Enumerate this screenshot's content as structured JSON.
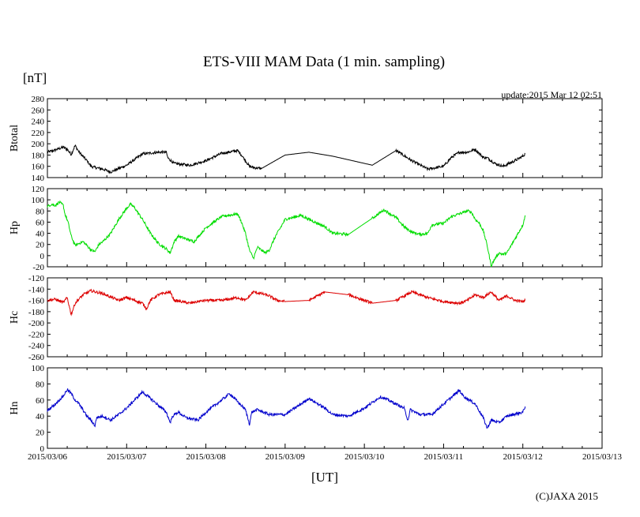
{
  "chart_data": {
    "type": "line",
    "title": "ETS-VIII MAM Data (1 min. sampling)",
    "unit_label": "[nT]",
    "xlabel": "[UT]",
    "update_text": "update:2015 Mar 12 02:51",
    "copyright": "(C)JAXA 2015",
    "x_ticks": [
      "2015/03/06",
      "2015/03/07",
      "2015/03/08",
      "2015/03/09",
      "2015/03/10",
      "2015/03/11",
      "2015/03/12",
      "2015/03/13"
    ],
    "x_range_days": [
      0,
      7
    ],
    "panels": [
      {
        "name": "Btotal",
        "color": "#000000",
        "ylim": [
          140,
          280
        ],
        "yticks": [
          "280",
          "260",
          "240",
          "220",
          "200",
          "180",
          "160",
          "140"
        ],
        "x": [
          0,
          0.08,
          0.2,
          0.25,
          0.3,
          0.35,
          0.4,
          0.5,
          0.55,
          0.6,
          0.7,
          0.8,
          1.0,
          1.2,
          1.4,
          1.5,
          1.52,
          1.6,
          1.8,
          2.0,
          2.2,
          2.4,
          2.45,
          2.55,
          2.6,
          2.7,
          3.0,
          3.3,
          3.6,
          4.1,
          4.4,
          4.6,
          4.8,
          5.0,
          5.1,
          5.2,
          5.3,
          5.4,
          5.5,
          5.55,
          5.65,
          5.75,
          5.9,
          6.0,
          6.03
        ],
        "y": [
          185,
          188,
          194,
          190,
          181,
          197,
          185,
          170,
          160,
          158,
          155,
          150,
          162,
          182,
          185,
          185,
          175,
          165,
          162,
          170,
          183,
          188,
          180,
          160,
          158,
          156,
          180,
          185,
          178,
          162,
          188,
          170,
          155,
          160,
          176,
          185,
          185,
          190,
          176,
          175,
          165,
          160,
          170,
          178,
          182
        ]
      },
      {
        "name": "Hp",
        "color": "#00dd00",
        "ylim": [
          -20,
          120
        ],
        "yticks": [
          "120",
          "100",
          "80",
          "60",
          "40",
          "20",
          "0",
          "-20"
        ],
        "x": [
          0,
          0.05,
          0.1,
          0.15,
          0.2,
          0.22,
          0.26,
          0.3,
          0.35,
          0.4,
          0.45,
          0.5,
          0.55,
          0.6,
          0.65,
          0.7,
          0.8,
          0.9,
          1.0,
          1.05,
          1.1,
          1.2,
          1.3,
          1.4,
          1.5,
          1.55,
          1.6,
          1.65,
          1.75,
          1.85,
          2.0,
          2.2,
          2.4,
          2.45,
          2.5,
          2.55,
          2.6,
          2.65,
          2.75,
          2.8,
          2.88,
          2.95,
          3.0,
          3.2,
          3.3,
          3.5,
          3.6,
          3.8,
          4.1,
          4.25,
          4.4,
          4.5,
          4.6,
          4.7,
          4.8,
          4.85,
          5.0,
          5.1,
          5.2,
          5.3,
          5.35,
          5.4,
          5.45,
          5.5,
          5.55,
          5.6,
          5.65,
          5.7,
          5.75,
          5.8,
          5.9,
          6.0,
          6.03
        ],
        "y": [
          88,
          92,
          90,
          96,
          90,
          75,
          60,
          35,
          18,
          22,
          25,
          18,
          10,
          7,
          20,
          25,
          40,
          65,
          85,
          92,
          86,
          65,
          40,
          22,
          12,
          5,
          25,
          35,
          30,
          25,
          50,
          70,
          75,
          60,
          40,
          10,
          -5,
          15,
          5,
          10,
          35,
          52,
          65,
          72,
          65,
          52,
          40,
          38,
          67,
          82,
          68,
          52,
          42,
          38,
          40,
          55,
          58,
          70,
          75,
          80,
          78,
          65,
          58,
          45,
          18,
          -18,
          -5,
          5,
          2,
          5,
          30,
          55,
          72
        ]
      },
      {
        "name": "Hc",
        "color": "#dd0000",
        "ylim": [
          -260,
          -120
        ],
        "yticks": [
          "-120",
          "-140",
          "-160",
          "-180",
          "-200",
          "-220",
          "-240",
          "-260"
        ],
        "x": [
          0,
          0.1,
          0.2,
          0.25,
          0.3,
          0.35,
          0.45,
          0.55,
          0.7,
          0.9,
          1.0,
          1.2,
          1.25,
          1.3,
          1.4,
          1.55,
          1.6,
          1.8,
          1.9,
          2.0,
          2.2,
          2.4,
          2.5,
          2.6,
          2.7,
          2.8,
          2.9,
          3.0,
          3.3,
          3.5,
          3.8,
          4.0,
          4.1,
          4.4,
          4.6,
          4.8,
          5.0,
          5.2,
          5.3,
          5.4,
          5.5,
          5.6,
          5.7,
          5.8,
          5.9,
          6.0,
          6.03
        ],
        "y": [
          -160,
          -158,
          -164,
          -155,
          -185,
          -165,
          -150,
          -143,
          -148,
          -160,
          -155,
          -165,
          -175,
          -160,
          -150,
          -145,
          -160,
          -165,
          -162,
          -160,
          -160,
          -155,
          -160,
          -145,
          -148,
          -152,
          -160,
          -162,
          -160,
          -145,
          -150,
          -160,
          -165,
          -160,
          -145,
          -155,
          -162,
          -165,
          -160,
          -150,
          -155,
          -145,
          -160,
          -152,
          -160,
          -162,
          -160
        ]
      },
      {
        "name": "Hn",
        "color": "#0000cc",
        "ylim": [
          0,
          100
        ],
        "yticks": [
          "100",
          "80",
          "60",
          "40",
          "20",
          "0"
        ],
        "x": [
          0,
          0.1,
          0.2,
          0.25,
          0.3,
          0.35,
          0.4,
          0.5,
          0.55,
          0.6,
          0.62,
          0.7,
          0.8,
          0.9,
          1.0,
          1.1,
          1.2,
          1.3,
          1.5,
          1.55,
          1.58,
          1.65,
          1.75,
          1.9,
          2.0,
          2.2,
          2.3,
          2.4,
          2.5,
          2.55,
          2.58,
          2.65,
          2.8,
          3.0,
          3.2,
          3.3,
          3.5,
          3.6,
          3.8,
          4.0,
          4.2,
          4.3,
          4.5,
          4.55,
          4.58,
          4.7,
          4.85,
          5.0,
          5.2,
          5.25,
          5.4,
          5.5,
          5.55,
          5.6,
          5.7,
          5.8,
          6.0,
          6.03
        ],
        "y": [
          47,
          55,
          65,
          73,
          68,
          60,
          55,
          40,
          35,
          28,
          38,
          40,
          35,
          42,
          50,
          60,
          70,
          62,
          45,
          32,
          40,
          45,
          38,
          35,
          45,
          60,
          68,
          58,
          48,
          30,
          45,
          48,
          42,
          42,
          55,
          62,
          50,
          42,
          40,
          50,
          64,
          60,
          50,
          35,
          48,
          42,
          42,
          55,
          72,
          65,
          55,
          38,
          25,
          35,
          32,
          40,
          45,
          52
        ]
      }
    ]
  }
}
